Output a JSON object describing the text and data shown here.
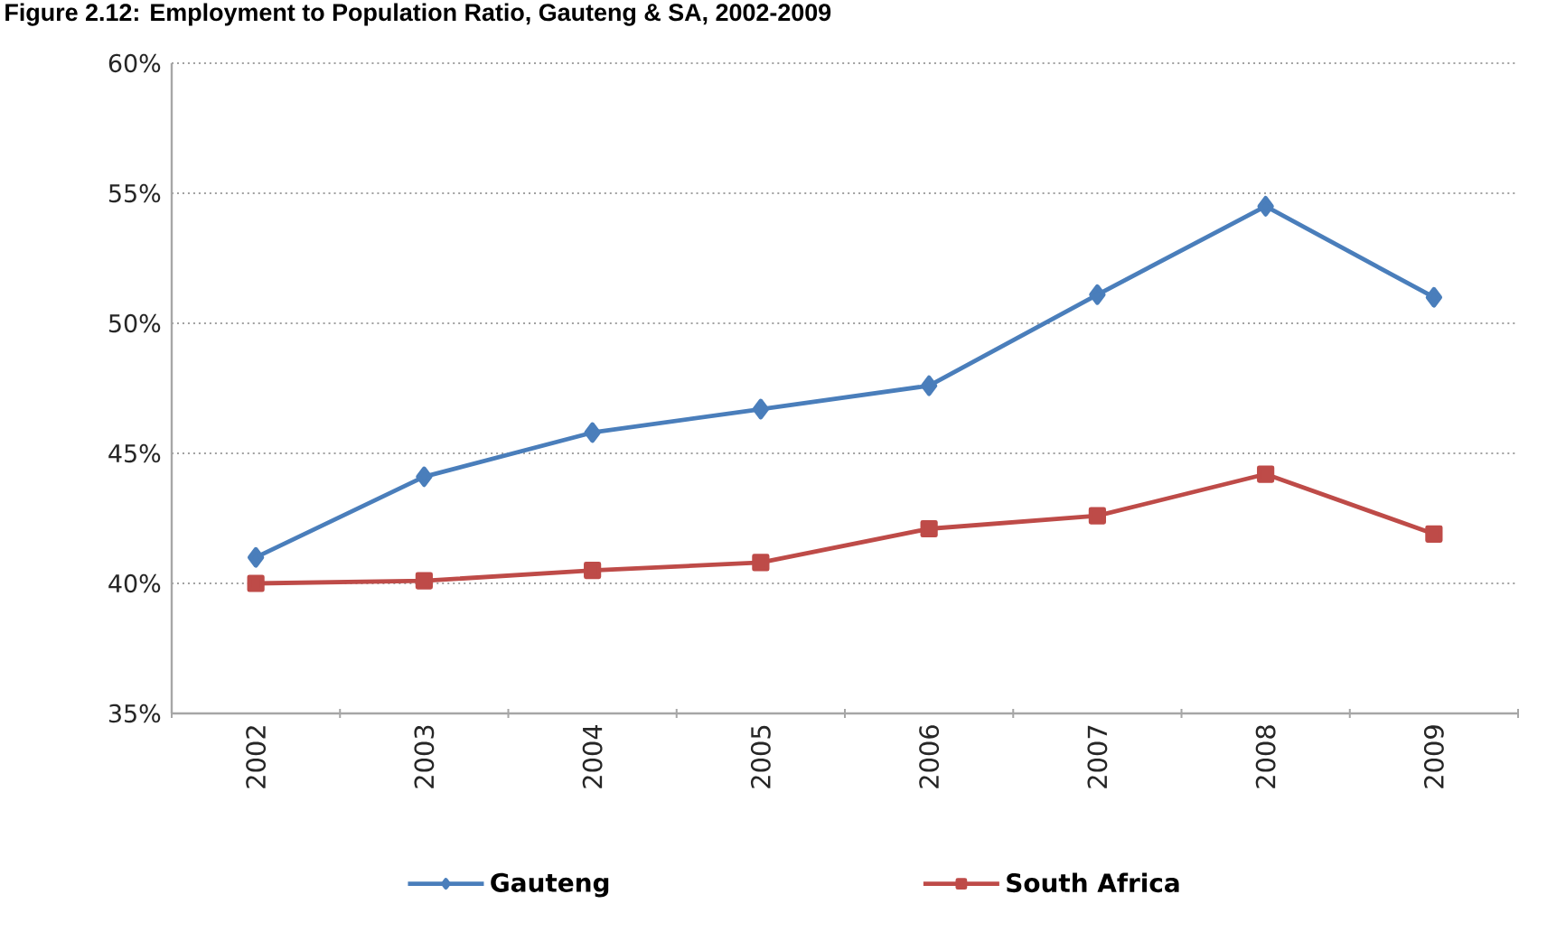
{
  "chart_data": {
    "type": "line",
    "title": "Figure 2.12: Employment to Population Ratio, Gauteng & SA, 2002-2009",
    "categories": [
      "2002",
      "2003",
      "2004",
      "2005",
      "2006",
      "2007",
      "2008",
      "2009"
    ],
    "series": [
      {
        "name": "Gauteng",
        "color": "#4a7ebb",
        "marker": "diamond",
        "values": [
          41.0,
          44.1,
          45.8,
          46.7,
          47.6,
          51.1,
          54.5,
          51.0
        ]
      },
      {
        "name": "South Africa",
        "color": "#be4b48",
        "marker": "square",
        "values": [
          40.0,
          40.1,
          40.5,
          40.8,
          42.1,
          42.6,
          44.2,
          41.9
        ]
      }
    ],
    "ylim": [
      35,
      60
    ],
    "yticks": [
      {
        "value": 35,
        "label": "35%"
      },
      {
        "value": 40,
        "label": "40%"
      },
      {
        "value": 45,
        "label": "45%"
      },
      {
        "value": 50,
        "label": "50%"
      },
      {
        "value": 55,
        "label": "55%"
      },
      {
        "value": 60,
        "label": "60%"
      }
    ],
    "grid": "y",
    "legend": "bottom"
  }
}
